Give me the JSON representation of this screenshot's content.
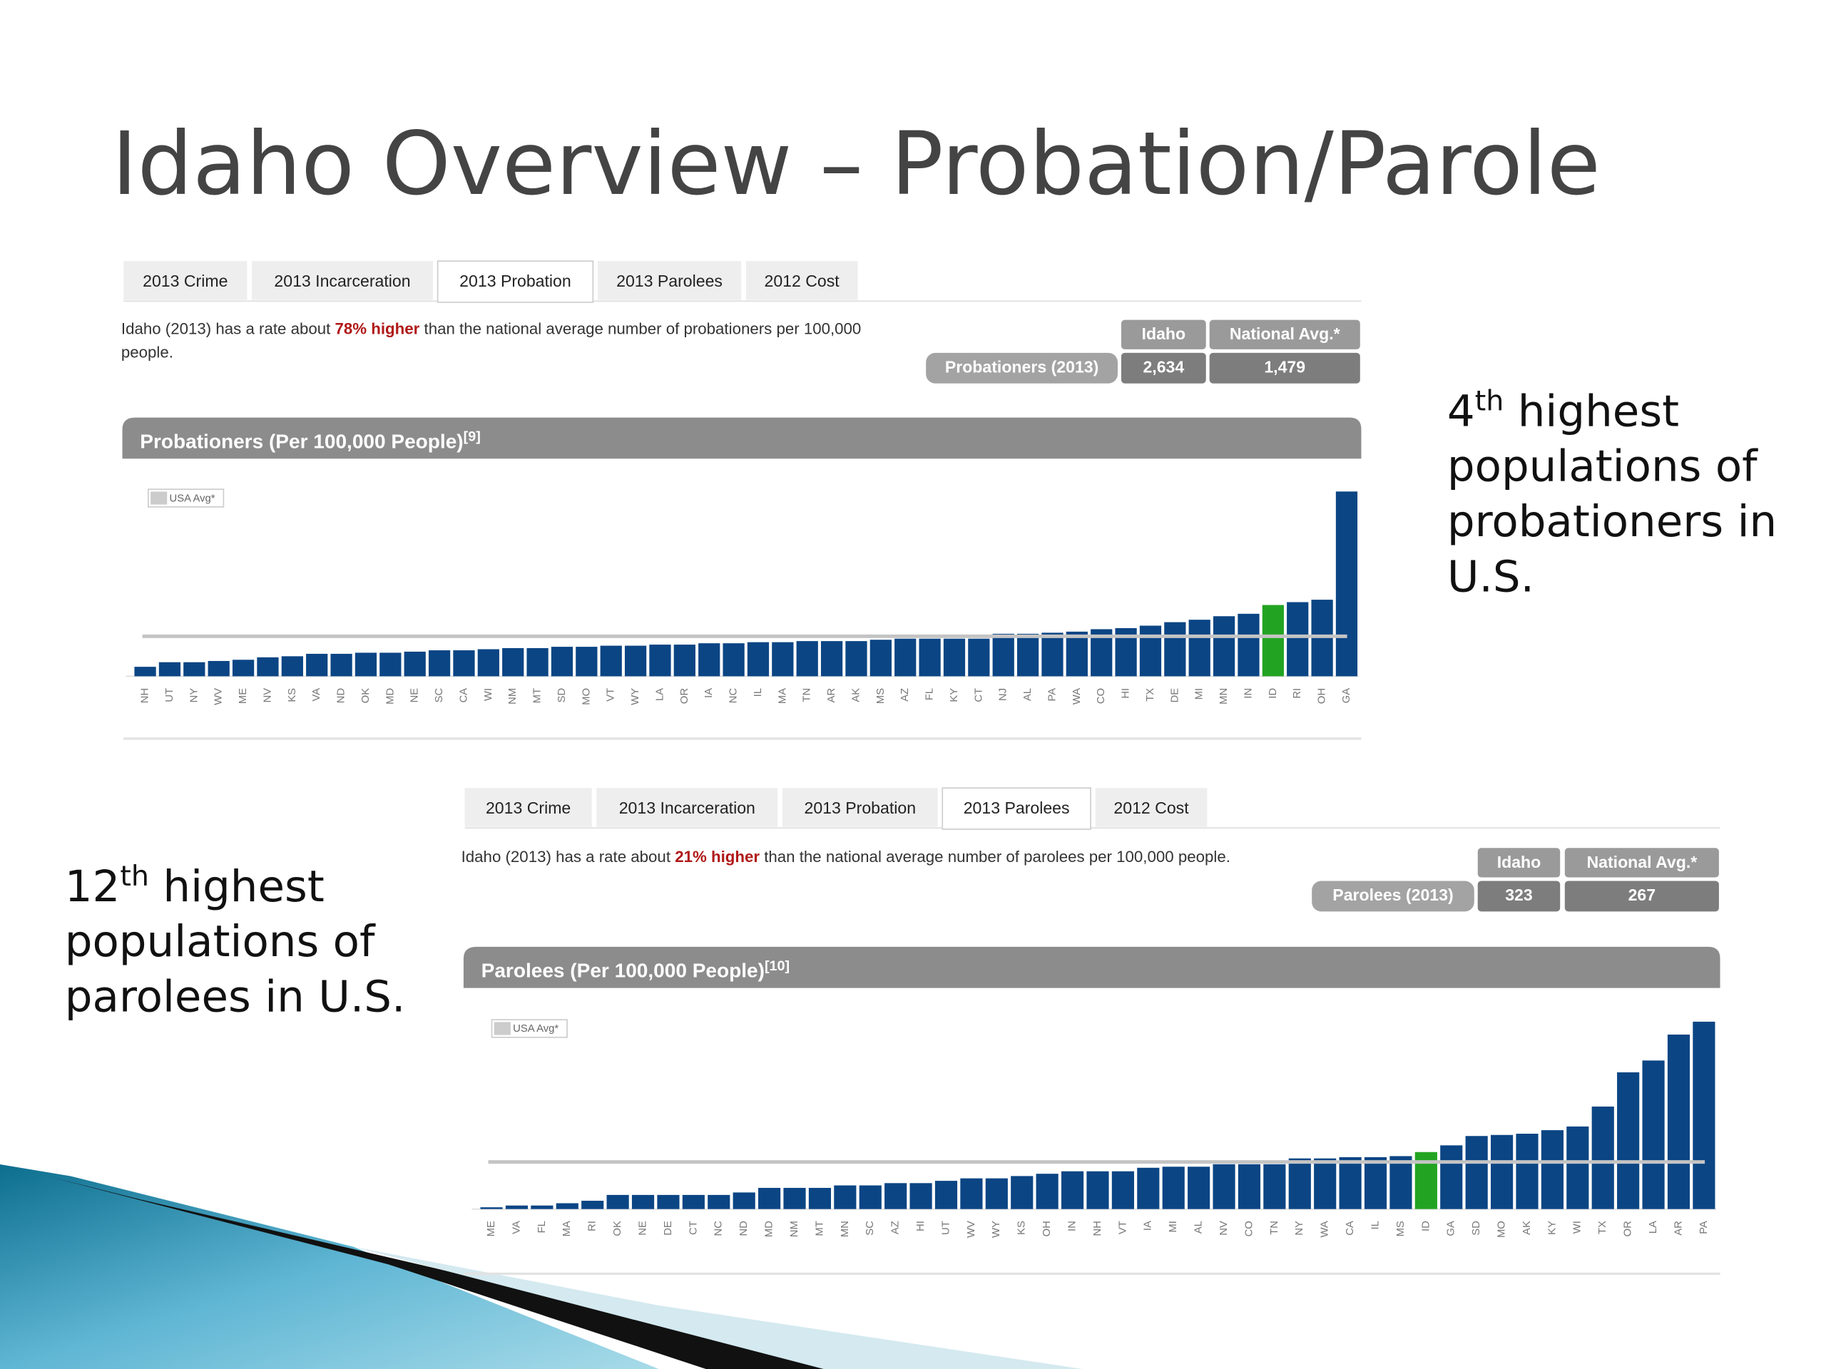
{
  "title": "Idaho Overview – Probation/Parole",
  "notes": [
    {
      "rank": "4",
      "suffix": "th",
      "text": "highest populations of probationers in U.S."
    },
    {
      "rank": "12",
      "suffix": "th",
      "text": "highest populations of parolees in U.S."
    }
  ],
  "panels": [
    {
      "tabs": [
        "2013 Crime",
        "2013 Incarceration",
        "2013 Probation",
        "2013 Parolees",
        "2012 Cost"
      ],
      "active_tab": 2,
      "sentence": [
        "Idaho (2013) has a rate about ",
        "78% higher",
        " than the national average number of probationers per 100,000 people."
      ],
      "table": {
        "headers": [
          "Idaho",
          "National Avg.*"
        ],
        "row_label": "Probationers (2013)",
        "values": [
          2634,
          1479
        ],
        "value_labels": [
          "2,634",
          "1,479"
        ]
      }
    },
    {
      "tabs": [
        "2013 Crime",
        "2013 Incarceration",
        "2013 Probation",
        "2013 Parolees",
        "2012 Cost"
      ],
      "active_tab": 3,
      "sentence": [
        "Idaho (2013) has a rate about ",
        "21% higher",
        " than the national average number of parolees per 100,000 people."
      ],
      "table": {
        "headers": [
          "Idaho",
          "National Avg.*"
        ],
        "row_label": "Parolees (2013)",
        "values": [
          323,
          267
        ],
        "value_labels": [
          "323",
          "267"
        ]
      }
    }
  ],
  "chart_data": [
    {
      "type": "bar",
      "title": "Probationers (Per 100,000 People)",
      "title_ref": "[9]",
      "legend": "USA Avg*",
      "categories": [
        "NH",
        "UT",
        "NY",
        "WV",
        "ME",
        "NV",
        "KS",
        "VA",
        "ND",
        "OK",
        "MD",
        "NE",
        "SC",
        "CA",
        "WI",
        "NM",
        "MT",
        "SD",
        "MO",
        "VT",
        "WY",
        "LA",
        "OR",
        "IA",
        "NC",
        "IL",
        "MA",
        "TN",
        "AR",
        "AK",
        "MS",
        "AZ",
        "FL",
        "KY",
        "CT",
        "NJ",
        "AL",
        "PA",
        "WA",
        "CO",
        "HI",
        "TX",
        "DE",
        "MI",
        "MN",
        "IN",
        "ID",
        "RI",
        "OH",
        "GA"
      ],
      "values": [
        350,
        520,
        520,
        565,
        610,
        700,
        740,
        830,
        830,
        870,
        870,
        910,
        960,
        960,
        1000,
        1040,
        1040,
        1090,
        1090,
        1130,
        1130,
        1170,
        1170,
        1220,
        1220,
        1260,
        1260,
        1300,
        1300,
        1300,
        1350,
        1390,
        1390,
        1390,
        1390,
        1570,
        1570,
        1610,
        1650,
        1740,
        1780,
        1870,
        2000,
        2090,
        2220,
        2310,
        2634,
        2740,
        2830,
        6830
      ],
      "color": "#0b4584",
      "highlight_category": "ID",
      "highlight_color": "#22a422",
      "avg_color": "#c4c4c4",
      "ylim": [
        0,
        7000
      ]
    },
    {
      "type": "bar",
      "title": "Parolees (Per 100,000 People)",
      "title_ref": "[10]",
      "legend": "USA Avg*",
      "categories": [
        "ME",
        "VA",
        "FL",
        "MA",
        "RI",
        "OK",
        "NE",
        "DE",
        "CT",
        "NC",
        "ND",
        "MD",
        "NM",
        "MT",
        "MN",
        "SC",
        "AZ",
        "HI",
        "UT",
        "WV",
        "WY",
        "KS",
        "OH",
        "IN",
        "NH",
        "VT",
        "IA",
        "MI",
        "AL",
        "NV",
        "CO",
        "TN",
        "NY",
        "WA",
        "CA",
        "IL",
        "MS",
        "ID",
        "GA",
        "SD",
        "MO",
        "AK",
        "KY",
        "WI",
        "TX",
        "OR",
        "LA",
        "AR",
        "PA"
      ],
      "values": [
        10,
        20,
        20,
        33,
        47,
        80,
        80,
        80,
        80,
        80,
        94,
        120,
        120,
        120,
        134,
        134,
        147,
        147,
        160,
        174,
        174,
        187,
        200,
        214,
        214,
        214,
        234,
        240,
        240,
        254,
        254,
        254,
        287,
        287,
        294,
        294,
        300,
        323,
        361,
        414,
        420,
        427,
        447,
        468,
        581,
        775,
        842,
        989,
        1062
      ],
      "color": "#0b4584",
      "highlight_category": "ID",
      "highlight_color": "#22a422",
      "avg_color": "#c4c4c4",
      "ylim": [
        0,
        1100
      ]
    }
  ]
}
